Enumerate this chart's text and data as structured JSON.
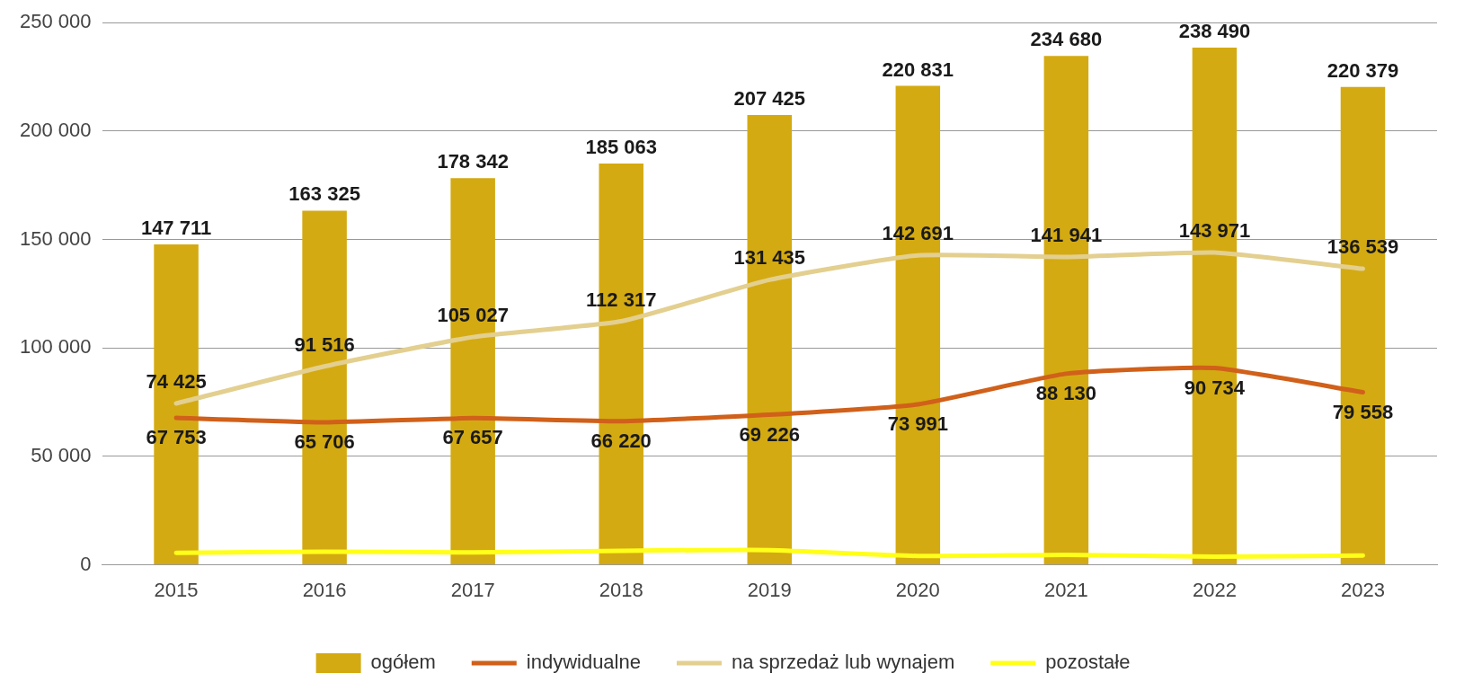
{
  "chart_data": {
    "type": "bar",
    "categories": [
      "2015",
      "2016",
      "2017",
      "2018",
      "2019",
      "2020",
      "2021",
      "2022",
      "2023"
    ],
    "series": [
      {
        "name": "ogółem",
        "color": "#d4aa12",
        "values": [
          147711,
          163325,
          178342,
          185063,
          207425,
          220831,
          234680,
          238490,
          220379
        ],
        "value_labels": [
          "147 711",
          "163 325",
          "178 342",
          "185 063",
          "207 425",
          "220 831",
          "234 680",
          "238 490",
          "220 379"
        ]
      },
      {
        "name": "indywidualne",
        "type": "line",
        "color": "#d0601a",
        "values": [
          67753,
          65706,
          67657,
          66220,
          69226,
          73991,
          88130,
          90734,
          79558
        ],
        "value_labels": [
          "67 753",
          "65 706",
          "67 657",
          "66 220",
          "69 226",
          "73 991",
          "88 130",
          "90 734",
          "79 558"
        ]
      },
      {
        "name": "na sprzedaż lub wynajem",
        "type": "line",
        "color": "#e3cf8f",
        "values": [
          74425,
          91516,
          105027,
          112317,
          131435,
          142691,
          141941,
          143971,
          136539
        ],
        "value_labels": [
          "74 425",
          "91 516",
          "105 027",
          "112 317",
          "131 435",
          "142 691",
          "141 941",
          "143 971",
          "136 539"
        ]
      },
      {
        "name": "pozostałe",
        "type": "line",
        "color": "#ffff1a",
        "values": [
          5500,
          6100,
          5700,
          6500,
          6800,
          4100,
          4600,
          3800,
          4300
        ]
      }
    ],
    "ylim": [
      0,
      250000
    ],
    "yticks": [
      {
        "value": 0,
        "label": "0"
      },
      {
        "value": 50000,
        "label": "50 000"
      },
      {
        "value": 100000,
        "label": "100 000"
      },
      {
        "value": 150000,
        "label": "150 000"
      },
      {
        "value": 200000,
        "label": "200 000"
      },
      {
        "value": 250000,
        "label": "250 000"
      }
    ],
    "grid": "y",
    "legend": "bottom",
    "line_style": "solid",
    "marker": "none"
  }
}
